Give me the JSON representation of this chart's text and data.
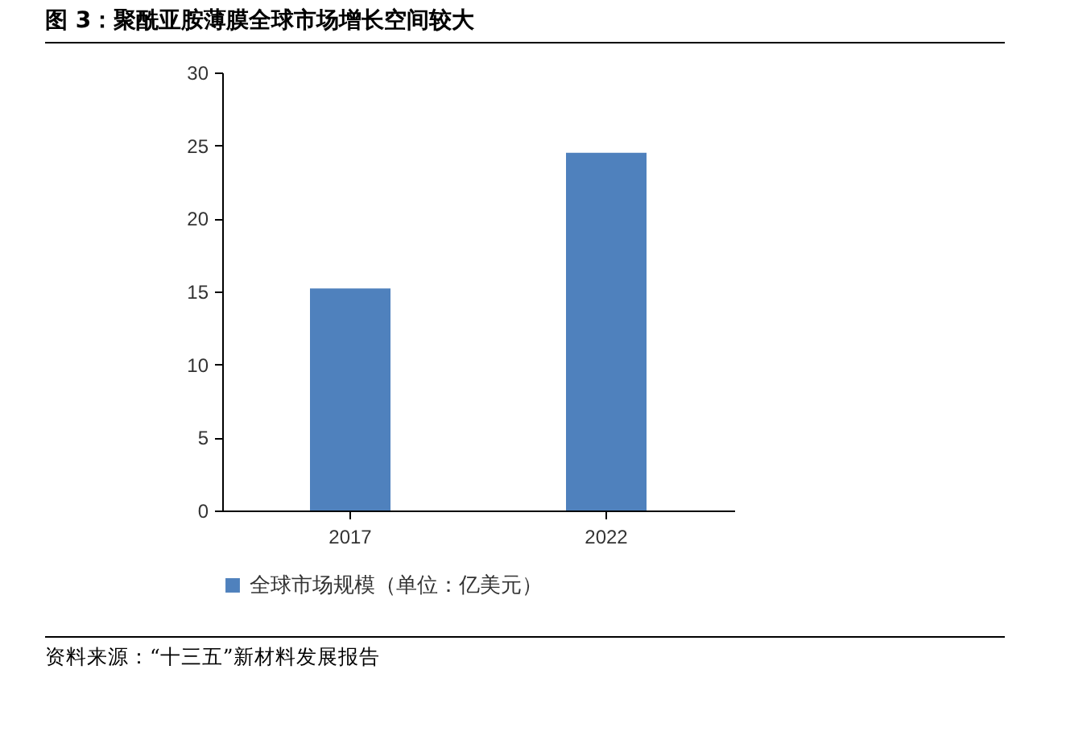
{
  "chart_data": {
    "type": "bar",
    "title": "图 3：聚酰亚胺薄膜全球市场增长空间较大",
    "categories": [
      "2017",
      "2022"
    ],
    "series": [
      {
        "name": "全球市场规模（单位：亿美元）",
        "color": "#4f81bd",
        "values": [
          15.2,
          24.5
        ]
      }
    ],
    "ylim": [
      0,
      30
    ],
    "yticks": [
      0,
      5,
      10,
      15,
      20,
      25,
      30
    ],
    "grid": false,
    "legend": "bottom",
    "annotations": [
      "资料来源：“十三五”新材料发展报告"
    ]
  }
}
